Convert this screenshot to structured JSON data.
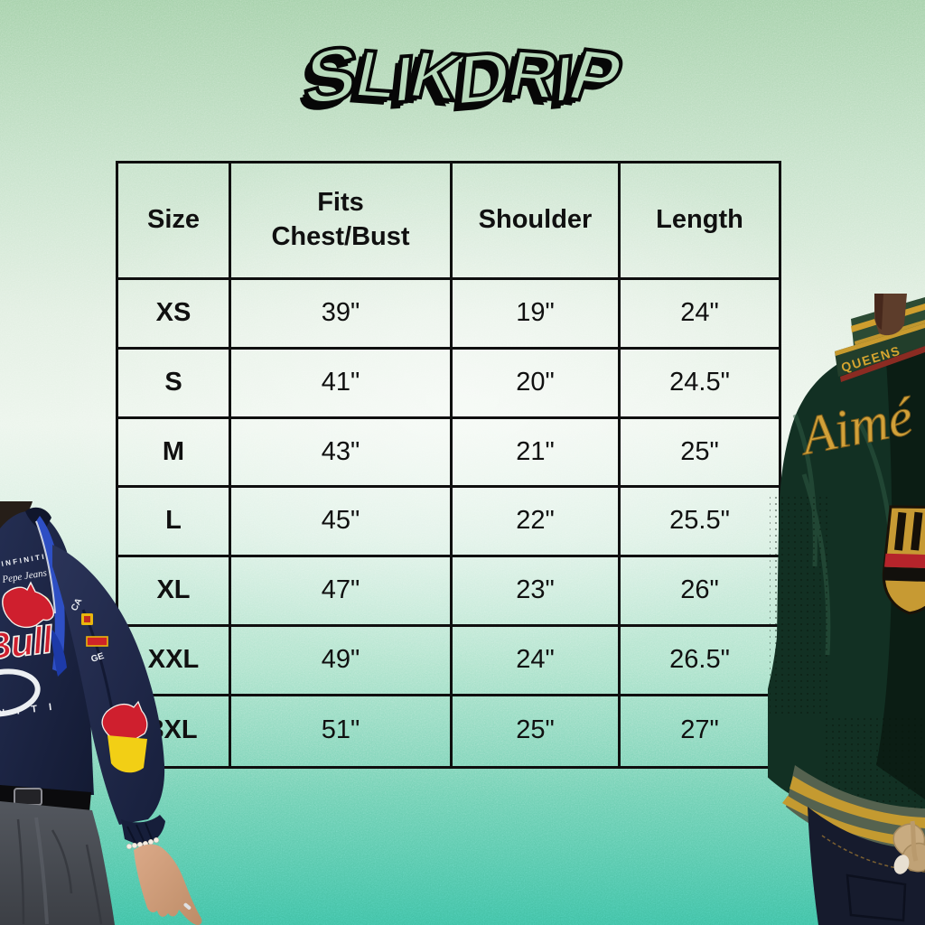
{
  "brand": {
    "logo_text": "SLIKDRIP"
  },
  "size_chart": {
    "headers": [
      "Size",
      "Fits Chest/Bust",
      "Shoulder",
      "Length"
    ],
    "rows": [
      {
        "size": "XS",
        "chest": "39\"",
        "shoulder": "19\"",
        "length": "24\""
      },
      {
        "size": "S",
        "chest": "41\"",
        "shoulder": "20\"",
        "length": "24.5\""
      },
      {
        "size": "M",
        "chest": "43\"",
        "shoulder": "21\"",
        "length": "25\""
      },
      {
        "size": "L",
        "chest": "45\"",
        "shoulder": "22\"",
        "length": "25.5\""
      },
      {
        "size": "XL",
        "chest": "47\"",
        "shoulder": "23\"",
        "length": "26\""
      },
      {
        "size": "XXL",
        "chest": "49\"",
        "shoulder": "24\"",
        "length": "26.5\""
      },
      {
        "size": "3XL",
        "chest": "51\"",
        "shoulder": "25\"",
        "length": "27\""
      }
    ]
  },
  "left_model": {
    "description": "person in navy racing jacket with dark grey jeans",
    "texts": {
      "arc_brand": "INFINITI",
      "script_brand": "Pepe Jeans",
      "big_red_text": "Bull",
      "side_text": "CA",
      "sleeve_text": "GE",
      "hem_text": "N I T I"
    }
  },
  "right_model": {
    "description": "person from behind in dark green leather varsity jacket",
    "texts": {
      "collar_text": "QUEENS",
      "back_script": "Aimé"
    }
  },
  "colors": {
    "bg_top": "#a4d0a9",
    "bg_bottom": "#3fbfa2",
    "table_line": "#0f0f0f",
    "navy_jacket": "#1a2340",
    "racing_red": "#cf1f2e",
    "patch_yellow": "#f2cf15",
    "green_jacket": "#112e22",
    "gold_accent": "#d2a139"
  }
}
